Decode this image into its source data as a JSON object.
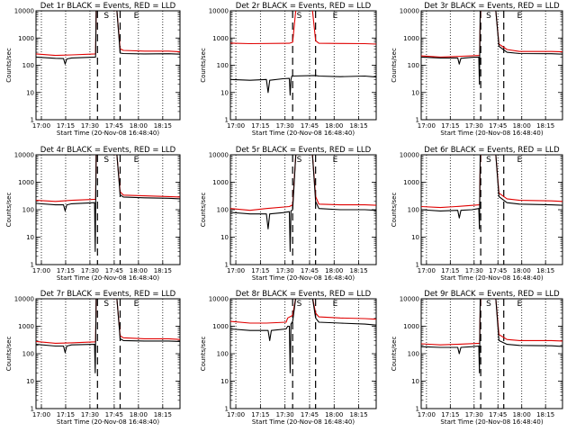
{
  "colors": {
    "events": "#000000",
    "lld": "#e00000",
    "background": "#ffffff"
  },
  "panel_titles": [
    "Det 1r BLACK = Events, RED = LLD",
    "Det 2r BLACK = Events, RED = LLD",
    "Det 3r BLACK = Events, RED = LLD",
    "Det 4r BLACK = Events, RED = LLD",
    "Det 5r BLACK = Events, RED = LLD",
    "Det 6r BLACK = Events, RED = LLD",
    "Det 7r BLACK = Events, RED = LLD",
    "Det 8r BLACK = Events, RED = LLD",
    "Det 9r BLACK = Events, RED = LLD"
  ],
  "xlabel": "Start Time (20-Nov-08 16:48:40)",
  "ylabel": "Counts/sec",
  "x_tick_labels": [
    "17:00",
    "17:15",
    "17:30",
    "17:45",
    "18:00",
    "18:15"
  ],
  "y_tick_labels": [
    "1",
    "10",
    "100",
    "1000",
    "10000"
  ],
  "marker_labels": {
    "start": "S",
    "end": "E"
  },
  "chart_data": [
    {
      "type": "line",
      "title": "Det 1r BLACK = Events, RED = LLD",
      "xlabel": "Start Time (20-Nov-08 16:48:40)",
      "ylabel": "Counts/sec",
      "x_unit": "minutes after 16:48:40",
      "xlim": [
        8,
        97
      ],
      "ylim": [
        1,
        10000
      ],
      "yscale": "log",
      "x_ticks": [
        11.33,
        26.33,
        41.33,
        56.33,
        71.33,
        86.33
      ],
      "grid": "dotted vertical at x ticks",
      "markers": {
        "S": 51.5,
        "E": 70
      },
      "dashed_lines": [
        46,
        60
      ],
      "series": [
        {
          "color": "red",
          "x": [
            8,
            20,
            30,
            44.8,
            45.2,
            48,
            58,
            60,
            62,
            75,
            90,
            97
          ],
          "y": [
            260,
            230,
            240,
            260,
            12000,
            12000,
            10000,
            400,
            350,
            330,
            330,
            310
          ]
        },
        {
          "color": "black",
          "x": [
            8,
            20,
            25,
            26,
            27,
            30,
            44.8,
            45.2,
            48,
            58,
            60,
            62,
            75,
            90,
            97
          ],
          "y": [
            200,
            180,
            175,
            110,
            170,
            185,
            200,
            12000,
            12000,
            10000,
            280,
            270,
            260,
            265,
            255
          ]
        }
      ]
    },
    {
      "type": "line",
      "title": "Det 2r BLACK = Events, RED = LLD",
      "xlabel": "Start Time (20-Nov-08 16:48:40)",
      "ylabel": "Counts/sec",
      "x_unit": "minutes after 16:48:40",
      "xlim": [
        8,
        97
      ],
      "ylim": [
        1,
        10000
      ],
      "yscale": "log",
      "x_ticks": [
        11.33,
        26.33,
        41.33,
        56.33,
        71.33,
        86.33
      ],
      "grid": "dotted vertical at x ticks",
      "markers": {
        "S": 50,
        "E": 72
      },
      "dashed_lines": [
        46,
        60
      ],
      "series": [
        {
          "color": "red",
          "x": [
            8,
            20,
            44,
            46,
            48,
            58,
            60,
            62,
            75,
            90,
            97
          ],
          "y": [
            650,
            620,
            640,
            700,
            12000,
            12000,
            800,
            640,
            630,
            620,
            600
          ]
        },
        {
          "color": "black",
          "x": [
            8,
            20,
            30,
            31,
            32,
            40,
            44,
            44.5,
            45,
            45.5,
            60,
            62,
            75,
            90,
            97
          ],
          "y": [
            30,
            28,
            30,
            10,
            28,
            32,
            33,
            8,
            30,
            40,
            42,
            40,
            38,
            40,
            37
          ]
        }
      ]
    },
    {
      "type": "line",
      "title": "Det 3r BLACK = Events, RED = LLD",
      "xlabel": "Start Time (20-Nov-08 16:48:40)",
      "ylabel": "Counts/sec",
      "x_unit": "minutes after 16:48:40",
      "xlim": [
        8,
        97
      ],
      "ylim": [
        1,
        10000
      ],
      "yscale": "log",
      "x_ticks": [
        11.33,
        26.33,
        41.33,
        56.33,
        71.33,
        86.33
      ],
      "grid": "dotted vertical at x ticks",
      "markers": {
        "S": 50.5,
        "E": 70
      },
      "dashed_lines": [
        45.5,
        60
      ],
      "series": [
        {
          "color": "red",
          "x": [
            8,
            20,
            30,
            44.8,
            45.3,
            47,
            55,
            57,
            62,
            70,
            90,
            97
          ],
          "y": [
            220,
            200,
            210,
            230,
            12000,
            12000,
            10000,
            600,
            380,
            320,
            320,
            310
          ]
        },
        {
          "color": "black",
          "x": [
            8,
            20,
            31,
            32,
            33,
            40,
            44.3,
            44.7,
            45.2,
            47,
            55,
            57,
            62,
            70,
            90,
            97
          ],
          "y": [
            200,
            185,
            185,
            110,
            180,
            195,
            200,
            20,
            12000,
            12000,
            10000,
            500,
            300,
            270,
            265,
            255
          ]
        }
      ]
    },
    {
      "type": "line",
      "title": "Det 4r BLACK = Events, RED = LLD",
      "xlabel": "Start Time (20-Nov-08 16:48:40)",
      "ylabel": "Counts/sec",
      "x_unit": "minutes after 16:48:40",
      "xlim": [
        8,
        97
      ],
      "ylim": [
        1,
        10000
      ],
      "yscale": "log",
      "x_ticks": [
        11.33,
        26.33,
        41.33,
        56.33,
        71.33,
        86.33
      ],
      "grid": "dotted vertical at x ticks",
      "markers": {
        "S": 51.5,
        "E": 70
      },
      "dashed_lines": [
        46,
        60
      ],
      "series": [
        {
          "color": "red",
          "x": [
            8,
            20,
            30,
            44.8,
            45.2,
            48,
            58,
            60,
            62,
            75,
            90,
            97
          ],
          "y": [
            220,
            200,
            220,
            240,
            12000,
            12000,
            10000,
            450,
            340,
            320,
            300,
            290
          ]
        },
        {
          "color": "black",
          "x": [
            8,
            20,
            25,
            26,
            27,
            30,
            44.2,
            44.6,
            45.2,
            48,
            58,
            60,
            62,
            75,
            90,
            97
          ],
          "y": [
            170,
            150,
            150,
            90,
            150,
            165,
            180,
            3,
            12000,
            12000,
            10000,
            350,
            290,
            270,
            260,
            250
          ]
        }
      ]
    },
    {
      "type": "line",
      "title": "Det 5r BLACK = Events, RED = LLD",
      "xlabel": "Start Time (20-Nov-08 16:48:40)",
      "ylabel": "Counts/sec",
      "x_unit": "minutes after 16:48:40",
      "xlim": [
        8,
        97
      ],
      "ylim": [
        1,
        10000
      ],
      "yscale": "log",
      "x_ticks": [
        11.33,
        26.33,
        41.33,
        56.33,
        71.33,
        86.33
      ],
      "grid": "dotted vertical at x ticks",
      "markers": {
        "S": 50,
        "E": 72
      },
      "dashed_lines": [
        46,
        60
      ],
      "series": [
        {
          "color": "red",
          "x": [
            8,
            20,
            30,
            44,
            46,
            48,
            58,
            60,
            62,
            75,
            90,
            97
          ],
          "y": [
            110,
            95,
            110,
            130,
            150,
            12000,
            12000,
            300,
            160,
            150,
            150,
            145
          ]
        },
        {
          "color": "black",
          "x": [
            8,
            20,
            30,
            31,
            32,
            40,
            44,
            44.5,
            45,
            46,
            48,
            58,
            60,
            62,
            75,
            90,
            97
          ],
          "y": [
            80,
            70,
            70,
            20,
            70,
            78,
            85,
            3,
            90,
            100,
            12000,
            12000,
            200,
            110,
            100,
            100,
            95
          ]
        }
      ]
    },
    {
      "type": "line",
      "title": "Det 6r BLACK = Events, RED = LLD",
      "xlabel": "Start Time (20-Nov-08 16:48:40)",
      "ylabel": "Counts/sec",
      "x_unit": "minutes after 16:48:40",
      "xlim": [
        8,
        97
      ],
      "ylim": [
        1,
        10000
      ],
      "yscale": "log",
      "x_ticks": [
        11.33,
        26.33,
        41.33,
        56.33,
        71.33,
        86.33
      ],
      "grid": "dotted vertical at x ticks",
      "markers": {
        "S": 50.5,
        "E": 70
      },
      "dashed_lines": [
        45.5,
        60
      ],
      "series": [
        {
          "color": "red",
          "x": [
            8,
            20,
            30,
            44.8,
            45.3,
            47,
            55,
            57,
            62,
            70,
            90,
            97
          ],
          "y": [
            130,
            120,
            130,
            150,
            12000,
            12000,
            10000,
            400,
            250,
            220,
            210,
            200
          ]
        },
        {
          "color": "black",
          "x": [
            8,
            20,
            31,
            32,
            33,
            40,
            44.3,
            44.7,
            45.2,
            47,
            55,
            57,
            62,
            70,
            90,
            97
          ],
          "y": [
            100,
            90,
            95,
            50,
            95,
            100,
            110,
            20,
            12000,
            12000,
            10000,
            300,
            180,
            160,
            150,
            145
          ]
        }
      ]
    },
    {
      "type": "line",
      "title": "Det 7r BLACK = Events, RED = LLD",
      "xlabel": "Start Time (20-Nov-08 16:48:40)",
      "ylabel": "Counts/sec",
      "x_unit": "minutes after 16:48:40",
      "xlim": [
        8,
        97
      ],
      "ylim": [
        1,
        10000
      ],
      "yscale": "log",
      "x_ticks": [
        11.33,
        26.33,
        41.33,
        56.33,
        71.33,
        86.33
      ],
      "grid": "dotted vertical at x ticks",
      "markers": {
        "S": 51.5,
        "E": 70
      },
      "dashed_lines": [
        46,
        60
      ],
      "series": [
        {
          "color": "red",
          "x": [
            8,
            20,
            30,
            44.8,
            45.2,
            48,
            58,
            60,
            62,
            75,
            90,
            97
          ],
          "y": [
            280,
            240,
            250,
            270,
            12000,
            12000,
            10000,
            450,
            380,
            350,
            350,
            330
          ]
        },
        {
          "color": "black",
          "x": [
            8,
            20,
            25,
            26,
            27,
            30,
            44.2,
            44.6,
            45.2,
            48,
            58,
            60,
            62,
            75,
            90,
            97
          ],
          "y": [
            220,
            190,
            190,
            110,
            190,
            210,
            220,
            20,
            12000,
            12000,
            10000,
            350,
            300,
            290,
            290,
            280
          ]
        }
      ]
    },
    {
      "type": "line",
      "title": "Det 8r BLACK = Events, RED = LLD",
      "xlabel": "Start Time (20-Nov-08 16:48:40)",
      "ylabel": "Counts/sec",
      "x_unit": "minutes after 16:48:40",
      "xlim": [
        8,
        97
      ],
      "ylim": [
        1,
        10000
      ],
      "yscale": "log",
      "x_ticks": [
        11.33,
        26.33,
        41.33,
        56.33,
        71.33,
        86.33
      ],
      "grid": "dotted vertical at x ticks",
      "markers": {
        "S": 50,
        "E": 72
      },
      "dashed_lines": [
        46,
        60
      ],
      "series": [
        {
          "color": "red",
          "x": [
            8,
            20,
            30,
            42,
            43,
            46,
            48,
            58,
            60,
            62,
            75,
            90,
            97
          ],
          "y": [
            1500,
            1300,
            1300,
            1400,
            2000,
            2500,
            12000,
            12000,
            3000,
            2200,
            2000,
            1900,
            1800
          ]
        },
        {
          "color": "black",
          "x": [
            8,
            20,
            31,
            32,
            33,
            42,
            43,
            44,
            44.5,
            45,
            46,
            48,
            58,
            60,
            62,
            75,
            90,
            97
          ],
          "y": [
            800,
            700,
            700,
            300,
            700,
            800,
            1000,
            1000,
            20,
            1200,
            1500,
            12000,
            12000,
            2000,
            1400,
            1300,
            1200,
            1100
          ]
        }
      ]
    },
    {
      "type": "line",
      "title": "Det 9r BLACK = Events, RED = LLD",
      "xlabel": "Start Time (20-Nov-08 16:48:40)",
      "ylabel": "Counts/sec",
      "x_unit": "minutes after 16:48:40",
      "xlim": [
        8,
        97
      ],
      "ylim": [
        1,
        10000
      ],
      "yscale": "log",
      "x_ticks": [
        11.33,
        26.33,
        41.33,
        56.33,
        71.33,
        86.33
      ],
      "grid": "dotted vertical at x ticks",
      "markers": {
        "S": 50.5,
        "E": 70
      },
      "dashed_lines": [
        45.5,
        60
      ],
      "series": [
        {
          "color": "red",
          "x": [
            8,
            20,
            30,
            44.8,
            45.3,
            47,
            55,
            57,
            62,
            70,
            90,
            97
          ],
          "y": [
            230,
            210,
            220,
            240,
            12000,
            12000,
            10000,
            500,
            330,
            300,
            300,
            290
          ]
        },
        {
          "color": "black",
          "x": [
            8,
            20,
            31,
            32,
            33,
            40,
            44.3,
            44.7,
            45.2,
            47,
            55,
            57,
            62,
            70,
            90,
            97
          ],
          "y": [
            180,
            170,
            170,
            100,
            170,
            180,
            190,
            20,
            12000,
            12000,
            10000,
            300,
            220,
            200,
            195,
            185
          ]
        }
      ]
    }
  ]
}
